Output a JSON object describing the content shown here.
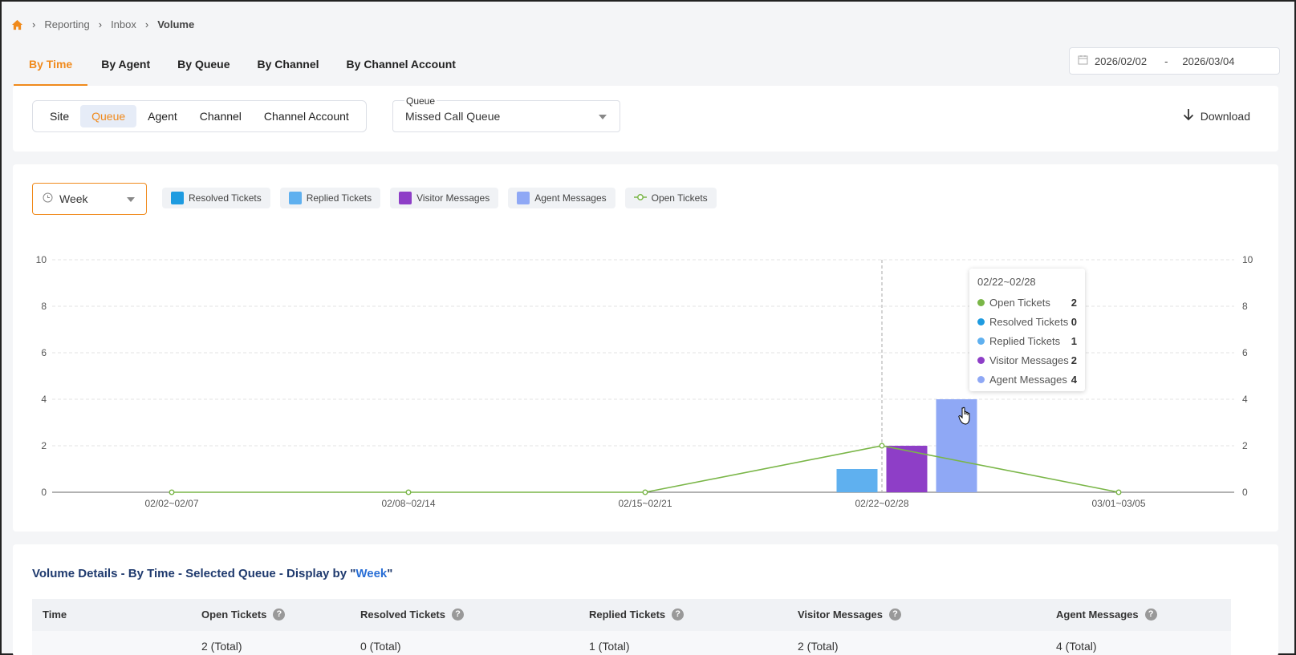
{
  "breadcrumb": {
    "items": [
      "Reporting",
      "Inbox"
    ],
    "current": "Volume"
  },
  "top_tabs": [
    "By Time",
    "By Agent",
    "By Queue",
    "By Channel",
    "By Channel Account"
  ],
  "date_range": {
    "start": "2026/02/02",
    "separator": "-",
    "end": "2026/03/04"
  },
  "filter": {
    "scopes": [
      "Site",
      "Queue",
      "Agent",
      "Channel",
      "Channel Account"
    ],
    "queue_label": "Queue",
    "queue_value": "Missed Call Queue",
    "download_label": "Download"
  },
  "chart_controls": {
    "period": "Week",
    "legend": [
      {
        "label": "Resolved Tickets",
        "color": "#1e9be0"
      },
      {
        "label": "Replied Tickets",
        "color": "#5fb0ef"
      },
      {
        "label": "Visitor Messages",
        "color": "#8e3ec7"
      },
      {
        "label": "Agent Messages",
        "color": "#8fa8f5"
      },
      {
        "label": "Open Tickets",
        "color": "#7ab648"
      }
    ]
  },
  "chart_data": {
    "type": "bar",
    "categories": [
      "02/02~02/07",
      "02/08~02/14",
      "02/15~02/21",
      "02/22~02/28",
      "03/01~03/05"
    ],
    "series": [
      {
        "name": "Resolved Tickets",
        "type": "bar",
        "color": "#1e9be0",
        "values": [
          0,
          0,
          0,
          0,
          0
        ]
      },
      {
        "name": "Replied Tickets",
        "type": "bar",
        "color": "#5fb0ef",
        "values": [
          0,
          0,
          0,
          1,
          0
        ]
      },
      {
        "name": "Visitor Messages",
        "type": "bar",
        "color": "#8e3ec7",
        "values": [
          0,
          0,
          0,
          2,
          0
        ]
      },
      {
        "name": "Agent Messages",
        "type": "bar",
        "color": "#8fa8f5",
        "values": [
          0,
          0,
          0,
          4,
          0
        ]
      },
      {
        "name": "Open Tickets",
        "type": "line",
        "color": "#7ab648",
        "values": [
          0,
          0,
          0,
          2,
          0
        ]
      }
    ],
    "yticks": [
      0,
      2,
      4,
      6,
      8,
      10
    ],
    "ylim": [
      0,
      10
    ],
    "grid": true
  },
  "tooltip": {
    "title": "02/22~02/28",
    "rows": [
      {
        "label": "Open Tickets",
        "value": "2",
        "color": "#7ab648"
      },
      {
        "label": "Resolved Tickets",
        "value": "0",
        "color": "#1e9be0"
      },
      {
        "label": "Replied Tickets",
        "value": "1",
        "color": "#5fb0ef"
      },
      {
        "label": "Visitor Messages",
        "value": "2",
        "color": "#8e3ec7"
      },
      {
        "label": "Agent Messages",
        "value": "4",
        "color": "#8fa8f5"
      }
    ]
  },
  "table": {
    "title_prefix": "Volume Details - By Time - Selected Queue - Display by \"",
    "title_highlight": "Week",
    "title_suffix": "\"",
    "headers": [
      "Time",
      "Open Tickets",
      "Resolved Tickets",
      "Replied Tickets",
      "Visitor Messages",
      "Agent Messages"
    ],
    "total_row": [
      "",
      "2 (Total)",
      "0 (Total)",
      "1 (Total)",
      "2 (Total)",
      "4 (Total)"
    ]
  }
}
